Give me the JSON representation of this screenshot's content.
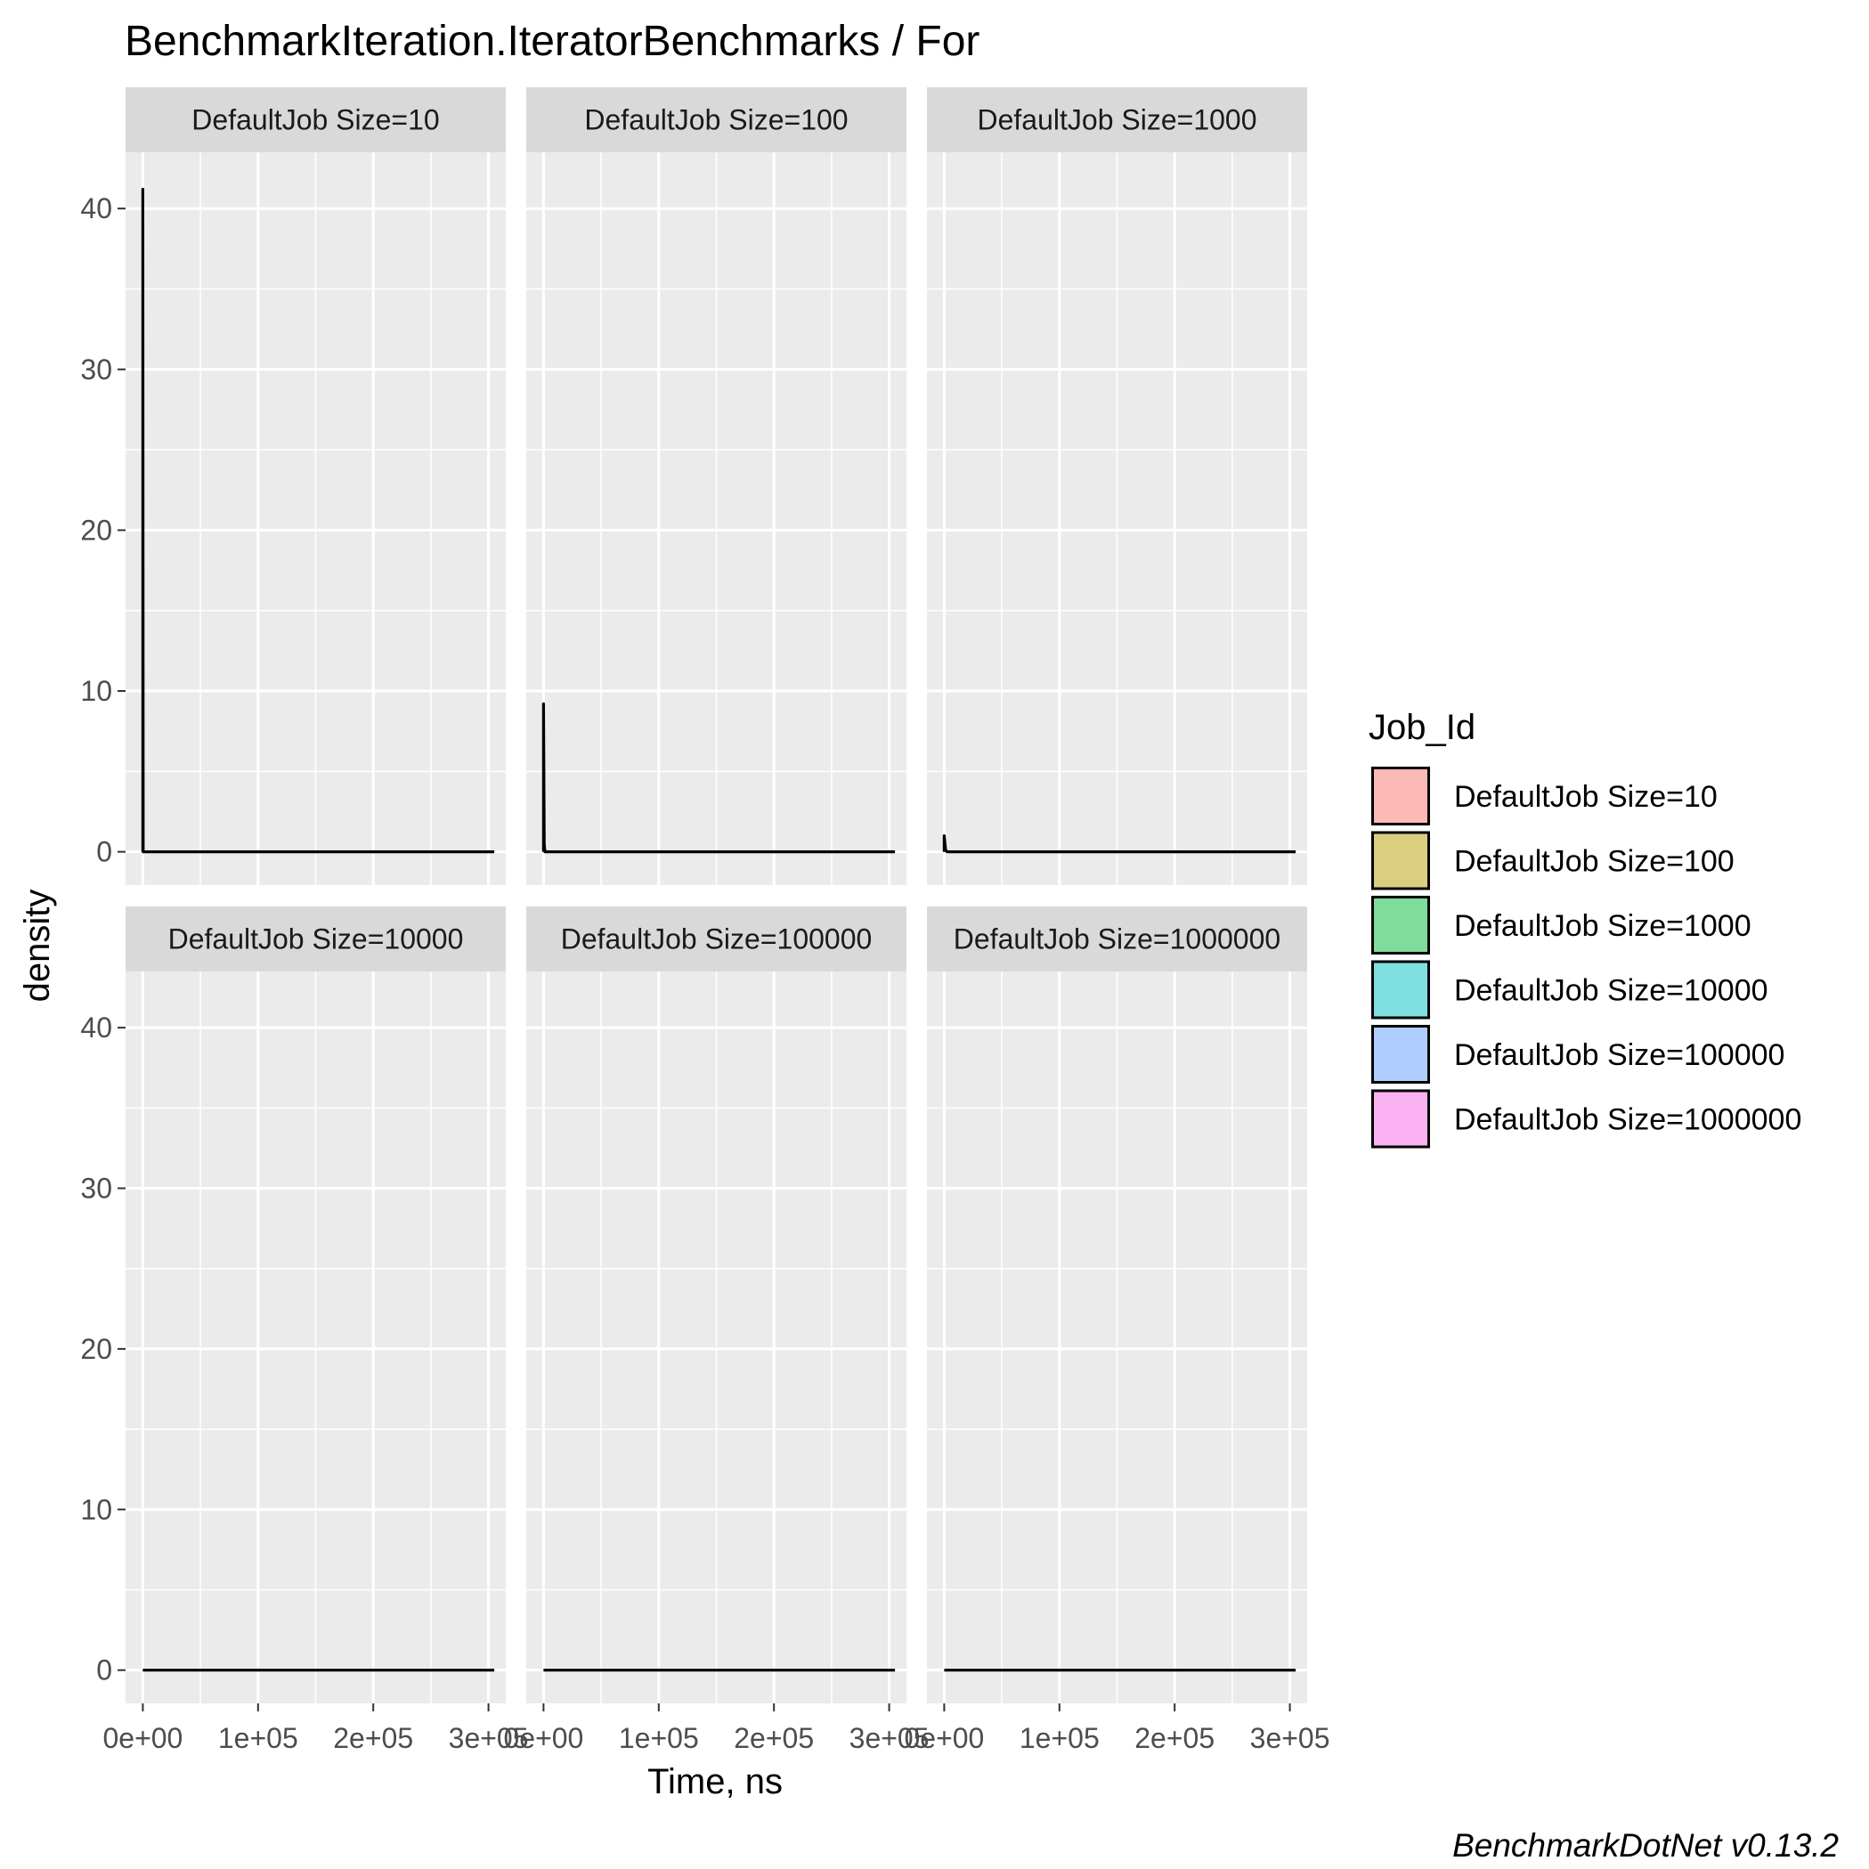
{
  "chart_data": {
    "type": "area",
    "title": "BenchmarkIteration.IteratorBenchmarks / For",
    "xlabel": "Time, ns",
    "ylabel": "density",
    "xlim": [
      -15000,
      315000
    ],
    "ylim": [
      -2.07,
      43.5
    ],
    "x_ticks": [
      0,
      100000,
      200000,
      300000
    ],
    "x_tick_labels": [
      "0e+00",
      "1e+05",
      "2e+05",
      "3e+05"
    ],
    "y_ticks": [
      0,
      10,
      20,
      30,
      40
    ],
    "y_tick_labels": [
      "0",
      "10",
      "20",
      "30",
      "40"
    ],
    "grid": true,
    "legend_position": "right",
    "legend_title": "Job_Id",
    "caption": "BenchmarkDotNet v0.13.2",
    "facets": [
      {
        "label": "DefaultJob Size=10",
        "color": "#F8766D",
        "x": [
          0,
          0,
          300,
          600,
          305000
        ],
        "y": [
          0,
          41.2,
          0,
          0,
          0
        ]
      },
      {
        "label": "DefaultJob Size=100",
        "color": "#B79F00",
        "x": [
          0,
          0,
          600,
          1200,
          305000
        ],
        "y": [
          0,
          9.2,
          0.5,
          0,
          0
        ]
      },
      {
        "label": "DefaultJob Size=1000",
        "color": "#00BA38",
        "x": [
          0,
          0,
          1200,
          2500,
          305000
        ],
        "y": [
          0,
          1.0,
          0.1,
          0,
          0
        ]
      },
      {
        "label": "DefaultJob Size=10000",
        "color": "#00BFC4",
        "x": [
          0,
          305000
        ],
        "y": [
          0,
          0
        ]
      },
      {
        "label": "DefaultJob Size=100000",
        "color": "#619CFF",
        "x": [
          0,
          305000
        ],
        "y": [
          0,
          0
        ]
      },
      {
        "label": "DefaultJob Size=1000000",
        "color": "#F564E3",
        "x": [
          0,
          305000
        ],
        "y": [
          0,
          0
        ]
      }
    ]
  }
}
